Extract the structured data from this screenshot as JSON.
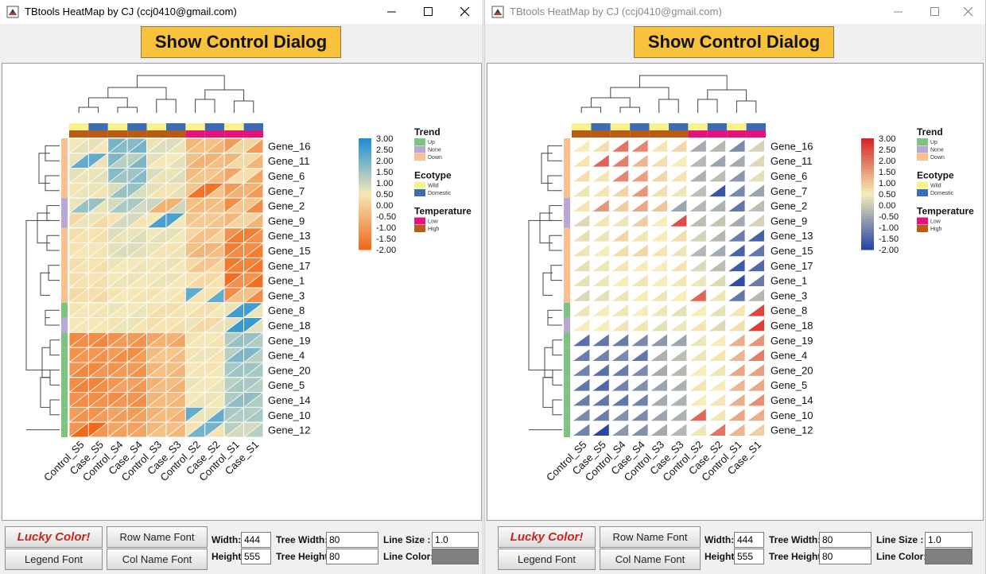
{
  "windows": [
    {
      "title": "TBtools HeatMap by CJ (ccj0410@gmail.com)",
      "show_button": "Show Control Dialog",
      "scheme": "A",
      "controls": {
        "lucky_color": "Lucky Color!",
        "legend_font": "Legend Font",
        "row_name_font": "Row Name Font",
        "col_name_font": "Col Name Font",
        "width_label": "Width:",
        "width_value": "444",
        "height_label": "Height:",
        "height_value": "555",
        "tree_width_label": "Tree Width:",
        "tree_width_value": "80",
        "tree_height_label": "Tree Height:",
        "tree_height_value": "80",
        "line_size_label": "Line Size :",
        "line_size_value": "1.0",
        "line_color_label": "Line Color:",
        "line_color": "#808080"
      }
    },
    {
      "title": "TBtools HeatMap by CJ (ccj0410@gmail.com)",
      "show_button": "Show Control Dialog",
      "scheme": "B",
      "controls": {
        "lucky_color": "Lucky Color!",
        "legend_font": "Legend Font",
        "row_name_font": "Row Name Font",
        "col_name_font": "Col Name Font",
        "width_label": "Width:",
        "width_value": "444",
        "height_label": "Height:",
        "height_value": "555",
        "tree_width_label": "Tree Width:",
        "tree_width_value": "80",
        "tree_height_label": "Tree Height:",
        "tree_height_value": "80",
        "line_size_label": "Line Size :",
        "line_size_value": "1.0",
        "line_color_label": "Line Color:",
        "line_color": "#808080"
      }
    }
  ],
  "chart_data": {
    "type": "heatmap",
    "cell_style": "split-triangles",
    "columns": [
      "Control_S5",
      "Case_S5",
      "Control_S4",
      "Case_S4",
      "Control_S3",
      "Case_S3",
      "Control_S2",
      "Case_S2",
      "Control_S1",
      "Case_S1"
    ],
    "rows": [
      {
        "name": "Gene_16",
        "trend": "Down",
        "values": [
          0.5,
          0.7,
          2.0,
          1.8,
          0.6,
          0.8,
          -0.5,
          -0.3,
          -1.0,
          0.1
        ]
      },
      {
        "name": "Gene_11",
        "trend": "Down",
        "values": [
          0.6,
          2.2,
          1.9,
          1.2,
          0.7,
          0.5,
          -0.3,
          -0.6,
          -0.5,
          0.2
        ]
      },
      {
        "name": "Gene_6",
        "trend": "Down",
        "values": [
          0.7,
          0.6,
          1.8,
          1.5,
          0.8,
          0.6,
          -0.4,
          -0.2,
          -0.8,
          0.3
        ]
      },
      {
        "name": "Gene_7",
        "trend": "Down",
        "values": [
          0.4,
          0.6,
          0.8,
          1.6,
          0.7,
          0.4,
          -0.2,
          -1.8,
          -1.0,
          -0.6
        ]
      },
      {
        "name": "Gene_2",
        "trend": "None",
        "values": [
          0.6,
          1.6,
          0.9,
          1.4,
          1.0,
          -0.6,
          -0.3,
          -0.4,
          -1.3,
          -0.2
        ]
      },
      {
        "name": "Gene_9",
        "trend": "None",
        "values": [
          0.2,
          0.6,
          0.4,
          0.9,
          0.5,
          2.5,
          -0.2,
          -0.1,
          -0.5,
          0.1
        ]
      },
      {
        "name": "Gene_13",
        "trend": "Down",
        "values": [
          0.3,
          0.4,
          0.8,
          0.6,
          0.5,
          0.7,
          0.1,
          -0.3,
          -1.2,
          -1.6
        ]
      },
      {
        "name": "Gene_15",
        "trend": "Down",
        "values": [
          0.4,
          0.5,
          0.7,
          0.8,
          0.6,
          0.4,
          -0.3,
          -0.5,
          -1.6,
          -1.3
        ]
      },
      {
        "name": "Gene_17",
        "trend": "Down",
        "values": [
          0.3,
          0.4,
          0.6,
          0.5,
          0.5,
          0.6,
          0.2,
          -0.2,
          -1.7,
          -1.5
        ]
      },
      {
        "name": "Gene_1",
        "trend": "Down",
        "values": [
          0.3,
          0.4,
          0.5,
          0.6,
          0.5,
          0.6,
          0.4,
          0.2,
          -1.9,
          -1.2
        ]
      },
      {
        "name": "Gene_3",
        "trend": "Down",
        "values": [
          0.2,
          0.3,
          0.4,
          0.5,
          0.4,
          0.5,
          2.2,
          0.4,
          -1.3,
          -0.3
        ]
      },
      {
        "name": "Gene_8",
        "trend": "Up",
        "values": [
          0.4,
          0.5,
          0.6,
          0.5,
          0.4,
          0.3,
          0.5,
          0.3,
          0.6,
          2.6
        ]
      },
      {
        "name": "Gene_18",
        "trend": "None",
        "values": [
          0.5,
          0.5,
          0.4,
          0.6,
          0.3,
          0.4,
          0.6,
          0.2,
          0.7,
          2.7
        ]
      },
      {
        "name": "Gene_19",
        "trend": "Up",
        "values": [
          -1.4,
          -1.3,
          -1.2,
          -1.0,
          -0.8,
          -0.6,
          0.4,
          0.5,
          1.3,
          1.6
        ]
      },
      {
        "name": "Gene_4",
        "trend": "Up",
        "values": [
          -1.2,
          -1.1,
          -1.0,
          -1.3,
          -0.4,
          -0.2,
          0.4,
          0.6,
          1.2,
          1.9
        ]
      },
      {
        "name": "Gene_20",
        "trend": "Up",
        "values": [
          -1.1,
          -1.4,
          -1.2,
          -1.0,
          -0.5,
          -0.3,
          0.5,
          0.4,
          1.4,
          1.5
        ]
      },
      {
        "name": "Gene_5",
        "trend": "Up",
        "values": [
          -1.3,
          -1.5,
          -1.1,
          -0.9,
          -0.6,
          -0.4,
          0.6,
          0.5,
          1.2,
          1.4
        ]
      },
      {
        "name": "Gene_14",
        "trend": "Up",
        "values": [
          -1.2,
          -1.3,
          -1.3,
          -1.1,
          -0.5,
          -0.4,
          0.5,
          0.6,
          1.3,
          1.7
        ]
      },
      {
        "name": "Gene_10",
        "trend": "Up",
        "values": [
          -1.0,
          -1.2,
          -0.9,
          -1.0,
          -0.6,
          -0.4,
          2.2,
          0.6,
          1.4,
          1.3
        ]
      },
      {
        "name": "Gene_12",
        "trend": "Up",
        "values": [
          -1.1,
          -2.0,
          -0.8,
          -0.9,
          -0.5,
          -0.3,
          0.4,
          2.0,
          1.2,
          0.9
        ]
      }
    ],
    "col_annotations": {
      "Ecotype": [
        "Wild",
        "Domestic",
        "Wild",
        "Domestic",
        "Wild",
        "Domestic",
        "Wild",
        "Domestic",
        "Wild",
        "Domestic"
      ],
      "Temperature": [
        "High",
        "High",
        "High",
        "High",
        "High",
        "High",
        "Low",
        "Low",
        "Low",
        "Low"
      ]
    },
    "color_range": [
      -2.0,
      3.0
    ],
    "scale_ticks": [
      "3.00",
      "2.50",
      "2.00",
      "1.50",
      "1.00",
      "0.50",
      "0.00",
      "-0.50",
      "-1.00",
      "-1.50",
      "-2.00"
    ],
    "schemes": {
      "A": {
        "low": "#f06a1a",
        "mid": "#f5e8b8",
        "high": "#1f8fd6"
      },
      "B": {
        "low": "#2747a3",
        "mid": "#f5eeb8",
        "high": "#d7262a"
      }
    },
    "legends": [
      {
        "title": "Trend",
        "items": [
          {
            "label": "Up",
            "color": "#7cc47f"
          },
          {
            "label": "None",
            "color": "#b9a7d6"
          },
          {
            "label": "Down",
            "color": "#f9bf8c"
          }
        ]
      },
      {
        "title": "Ecotype",
        "items": [
          {
            "label": "Wild",
            "color": "#f8f28a"
          },
          {
            "label": "Domestic",
            "color": "#3a6db5"
          }
        ]
      },
      {
        "title": "Temperature",
        "items": [
          {
            "label": "Low",
            "color": "#e3127c"
          },
          {
            "label": "High",
            "color": "#b85c14"
          }
        ]
      }
    ]
  }
}
